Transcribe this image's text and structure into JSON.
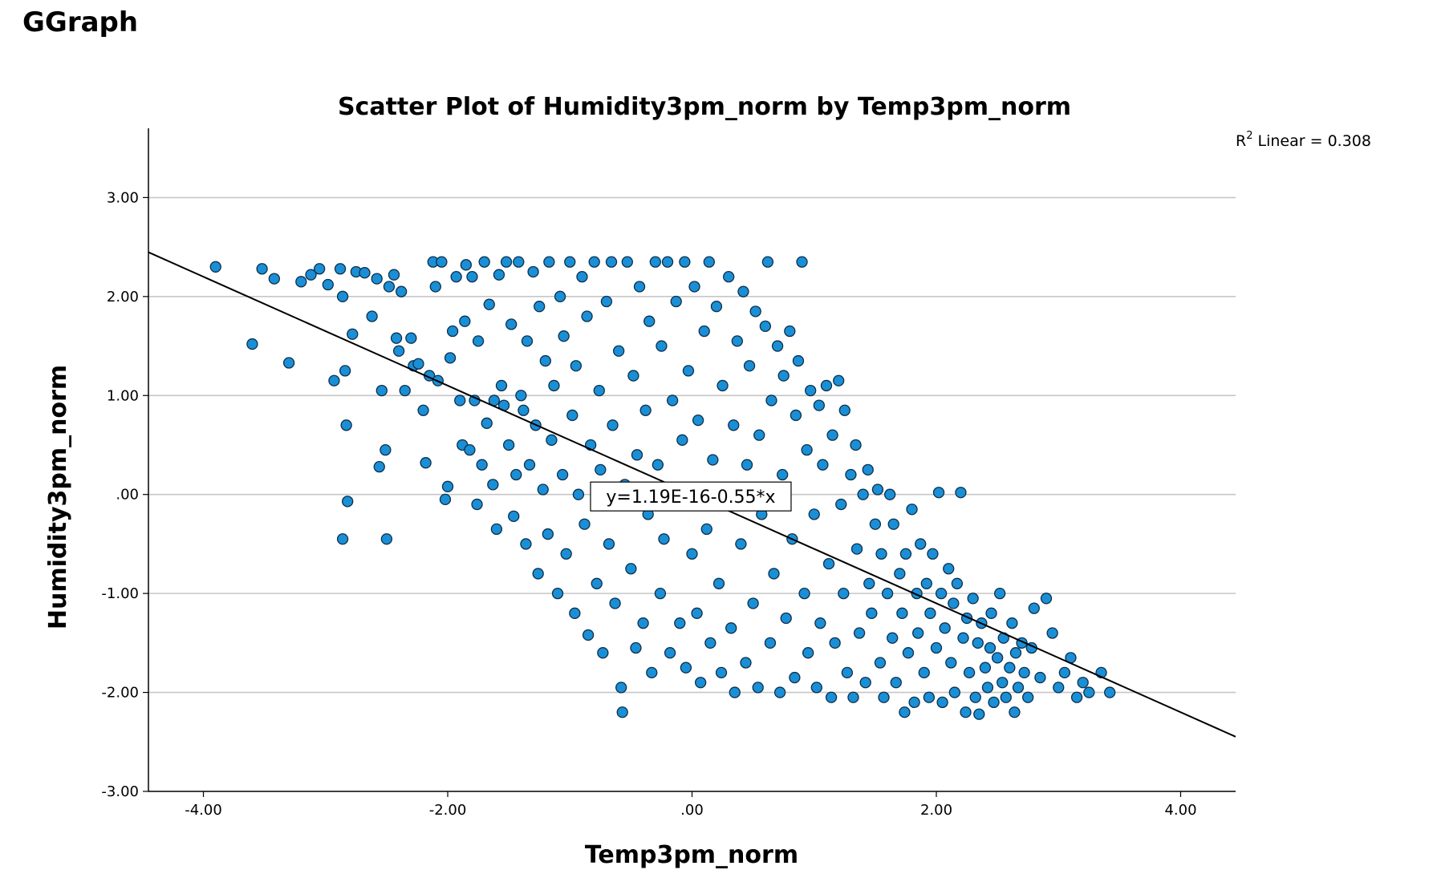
{
  "page": {
    "heading": "GGraph"
  },
  "chart_data": {
    "type": "scatter",
    "title": "Scatter Plot of Humidity3pm_norm by Temp3pm_norm",
    "xlabel": "Temp3pm_norm",
    "ylabel": "Humidity3pm_norm",
    "xlim": [
      -4.45,
      4.45
    ],
    "ylim": [
      -3.0,
      3.7
    ],
    "x_ticks": [
      -4.0,
      -2.0,
      0.0,
      2.0,
      4.0
    ],
    "x_tick_labels": [
      "-4.00",
      "-2.00",
      ".00",
      "2.00",
      "4.00"
    ],
    "y_ticks": [
      -3.0,
      -2.0,
      -1.0,
      0.0,
      1.0,
      2.0,
      3.0
    ],
    "y_tick_labels": [
      "-3.00",
      "-2.00",
      "-1.00",
      ".00",
      "1.00",
      "2.00",
      "3.00"
    ],
    "grid": "horizontal",
    "marker_color": "#1a8fd6",
    "marker_edge_color": "#0d2f4a",
    "fit_line": {
      "intercept": 1.19e-16,
      "slope": -0.55,
      "color": "#000000"
    },
    "fit_equation": "y=1.19E-16-0.55*x",
    "fit_equation_position": {
      "x": -0.01,
      "y": -0.02
    },
    "r2_label_base": "R",
    "r2_label_sup": "2",
    "r2_label_rest": " Linear = 0.308",
    "points": [
      [
        -3.9,
        2.3
      ],
      [
        -3.6,
        1.52
      ],
      [
        -3.52,
        2.28
      ],
      [
        -3.42,
        2.18
      ],
      [
        -3.3,
        1.33
      ],
      [
        -3.2,
        2.15
      ],
      [
        -3.12,
        2.22
      ],
      [
        -3.05,
        2.28
      ],
      [
        -2.98,
        2.12
      ],
      [
        -2.93,
        1.15
      ],
      [
        -2.88,
        2.28
      ],
      [
        -2.86,
        2.0
      ],
      [
        -2.84,
        1.25
      ],
      [
        -2.83,
        0.7
      ],
      [
        -2.82,
        -0.07
      ],
      [
        -2.86,
        -0.45
      ],
      [
        -2.78,
        1.62
      ],
      [
        -2.75,
        2.25
      ],
      [
        -2.68,
        2.24
      ],
      [
        -2.62,
        1.8
      ],
      [
        -2.58,
        2.18
      ],
      [
        -2.56,
        0.28
      ],
      [
        -2.54,
        1.05
      ],
      [
        -2.51,
        0.45
      ],
      [
        -2.5,
        -0.45
      ],
      [
        -2.48,
        2.1
      ],
      [
        -2.44,
        2.22
      ],
      [
        -2.42,
        1.58
      ],
      [
        -2.4,
        1.45
      ],
      [
        -2.38,
        2.05
      ],
      [
        -2.35,
        1.05
      ],
      [
        -2.3,
        1.58
      ],
      [
        -2.28,
        1.3
      ],
      [
        -2.24,
        1.32
      ],
      [
        -2.2,
        0.85
      ],
      [
        -2.18,
        0.32
      ],
      [
        -2.15,
        1.2
      ],
      [
        -2.12,
        2.35
      ],
      [
        -2.1,
        2.1
      ],
      [
        -2.08,
        1.15
      ],
      [
        -2.05,
        2.35
      ],
      [
        -2.02,
        -0.05
      ],
      [
        -2.0,
        0.08
      ],
      [
        -1.98,
        1.38
      ],
      [
        -1.96,
        1.65
      ],
      [
        -1.93,
        2.2
      ],
      [
        -1.9,
        0.95
      ],
      [
        -1.88,
        0.5
      ],
      [
        -1.86,
        1.75
      ],
      [
        -1.85,
        2.32
      ],
      [
        -1.82,
        0.45
      ],
      [
        -1.8,
        2.2
      ],
      [
        -1.78,
        0.95
      ],
      [
        -1.76,
        -0.1
      ],
      [
        -1.75,
        1.55
      ],
      [
        -1.72,
        0.3
      ],
      [
        -1.7,
        2.35
      ],
      [
        -1.68,
        0.72
      ],
      [
        -1.66,
        1.92
      ],
      [
        -1.63,
        0.1
      ],
      [
        -1.62,
        0.95
      ],
      [
        -1.6,
        -0.35
      ],
      [
        -1.58,
        2.22
      ],
      [
        -1.56,
        1.1
      ],
      [
        -1.54,
        0.9
      ],
      [
        -1.52,
        2.35
      ],
      [
        -1.5,
        0.5
      ],
      [
        -1.48,
        1.72
      ],
      [
        -1.46,
        -0.22
      ],
      [
        -1.44,
        0.2
      ],
      [
        -1.42,
        2.35
      ],
      [
        -1.4,
        1.0
      ],
      [
        -1.38,
        0.85
      ],
      [
        -1.36,
        -0.5
      ],
      [
        -1.35,
        1.55
      ],
      [
        -1.33,
        0.3
      ],
      [
        -1.3,
        2.25
      ],
      [
        -1.28,
        0.7
      ],
      [
        -1.26,
        -0.8
      ],
      [
        -1.25,
        1.9
      ],
      [
        -1.22,
        0.05
      ],
      [
        -1.2,
        1.35
      ],
      [
        -1.18,
        -0.4
      ],
      [
        -1.17,
        2.35
      ],
      [
        -1.15,
        0.55
      ],
      [
        -1.13,
        1.1
      ],
      [
        -1.1,
        -1.0
      ],
      [
        -1.08,
        2.0
      ],
      [
        -1.06,
        0.2
      ],
      [
        -1.05,
        1.6
      ],
      [
        -1.03,
        -0.6
      ],
      [
        -1.0,
        2.35
      ],
      [
        -0.98,
        0.8
      ],
      [
        -0.96,
        -1.2
      ],
      [
        -0.95,
        1.3
      ],
      [
        -0.93,
        0.0
      ],
      [
        -0.9,
        2.2
      ],
      [
        -0.88,
        -0.3
      ],
      [
        -0.86,
        1.8
      ],
      [
        -0.85,
        -1.42
      ],
      [
        -0.83,
        0.5
      ],
      [
        -0.8,
        2.35
      ],
      [
        -0.78,
        -0.9
      ],
      [
        -0.76,
        1.05
      ],
      [
        -0.75,
        0.25
      ],
      [
        -0.73,
        -1.6
      ],
      [
        -0.7,
        1.95
      ],
      [
        -0.68,
        -0.5
      ],
      [
        -0.66,
        2.35
      ],
      [
        -0.65,
        0.7
      ],
      [
        -0.63,
        -1.1
      ],
      [
        -0.6,
        1.45
      ],
      [
        -0.58,
        -1.95
      ],
      [
        -0.57,
        -2.2
      ],
      [
        -0.55,
        0.1
      ],
      [
        -0.53,
        2.35
      ],
      [
        -0.5,
        -0.75
      ],
      [
        -0.48,
        1.2
      ],
      [
        -0.46,
        -1.55
      ],
      [
        -0.45,
        0.4
      ],
      [
        -0.43,
        2.1
      ],
      [
        -0.4,
        -1.3
      ],
      [
        -0.38,
        0.85
      ],
      [
        -0.36,
        -0.2
      ],
      [
        -0.35,
        1.75
      ],
      [
        -0.33,
        -1.8
      ],
      [
        -0.3,
        2.35
      ],
      [
        -0.28,
        0.3
      ],
      [
        -0.26,
        -1.0
      ],
      [
        -0.25,
        1.5
      ],
      [
        -0.23,
        -0.45
      ],
      [
        -0.2,
        2.35
      ],
      [
        -0.18,
        -1.6
      ],
      [
        -0.16,
        0.95
      ],
      [
        -0.15,
        -0.1
      ],
      [
        -0.13,
        1.95
      ],
      [
        -0.1,
        -1.3
      ],
      [
        -0.08,
        0.55
      ],
      [
        -0.06,
        2.35
      ],
      [
        -0.05,
        -1.75
      ],
      [
        -0.03,
        1.25
      ],
      [
        0.0,
        -0.6
      ],
      [
        0.02,
        2.1
      ],
      [
        0.04,
        -1.2
      ],
      [
        0.05,
        0.75
      ],
      [
        0.07,
        -1.9
      ],
      [
        0.1,
        1.65
      ],
      [
        0.12,
        -0.35
      ],
      [
        0.14,
        2.35
      ],
      [
        0.15,
        -1.5
      ],
      [
        0.17,
        0.35
      ],
      [
        0.2,
        1.9
      ],
      [
        0.22,
        -0.9
      ],
      [
        0.24,
        -1.8
      ],
      [
        0.25,
        1.1
      ],
      [
        0.27,
        0.05
      ],
      [
        0.3,
        2.2
      ],
      [
        0.32,
        -1.35
      ],
      [
        0.34,
        0.7
      ],
      [
        0.35,
        -2.0
      ],
      [
        0.37,
        1.55
      ],
      [
        0.4,
        -0.5
      ],
      [
        0.42,
        2.05
      ],
      [
        0.44,
        -1.7
      ],
      [
        0.45,
        0.3
      ],
      [
        0.47,
        1.3
      ],
      [
        0.5,
        -1.1
      ],
      [
        0.52,
        1.85
      ],
      [
        0.54,
        -1.95
      ],
      [
        0.55,
        0.6
      ],
      [
        0.57,
        -0.2
      ],
      [
        0.6,
        1.7
      ],
      [
        0.62,
        2.35
      ],
      [
        0.64,
        -1.5
      ],
      [
        0.65,
        0.95
      ],
      [
        0.67,
        -0.8
      ],
      [
        0.7,
        1.5
      ],
      [
        0.72,
        -2.0
      ],
      [
        0.74,
        0.2
      ],
      [
        0.75,
        1.2
      ],
      [
        0.77,
        -1.25
      ],
      [
        0.8,
        1.65
      ],
      [
        0.82,
        -0.45
      ],
      [
        0.84,
        -1.85
      ],
      [
        0.85,
        0.8
      ],
      [
        0.87,
        1.35
      ],
      [
        0.9,
        2.35
      ],
      [
        0.92,
        -1.0
      ],
      [
        0.94,
        0.45
      ],
      [
        0.95,
        -1.6
      ],
      [
        0.97,
        1.05
      ],
      [
        1.0,
        -0.2
      ],
      [
        1.02,
        -1.95
      ],
      [
        1.04,
        0.9
      ],
      [
        1.05,
        -1.3
      ],
      [
        1.07,
        0.3
      ],
      [
        1.1,
        1.1
      ],
      [
        1.12,
        -0.7
      ],
      [
        1.14,
        -2.05
      ],
      [
        1.15,
        0.6
      ],
      [
        1.17,
        -1.5
      ],
      [
        1.2,
        1.15
      ],
      [
        1.22,
        -0.1
      ],
      [
        1.24,
        -1.0
      ],
      [
        1.25,
        0.85
      ],
      [
        1.27,
        -1.8
      ],
      [
        1.3,
        0.2
      ],
      [
        1.32,
        -2.05
      ],
      [
        1.34,
        0.5
      ],
      [
        1.35,
        -0.55
      ],
      [
        1.37,
        -1.4
      ],
      [
        1.4,
        0.0
      ],
      [
        1.42,
        -1.9
      ],
      [
        1.44,
        0.25
      ],
      [
        1.45,
        -0.9
      ],
      [
        1.47,
        -1.2
      ],
      [
        1.5,
        -0.3
      ],
      [
        1.52,
        0.05
      ],
      [
        1.54,
        -1.7
      ],
      [
        1.55,
        -0.6
      ],
      [
        1.57,
        -2.05
      ],
      [
        1.6,
        -1.0
      ],
      [
        1.62,
        0.0
      ],
      [
        1.64,
        -1.45
      ],
      [
        1.65,
        -0.3
      ],
      [
        1.67,
        -1.9
      ],
      [
        1.7,
        -0.8
      ],
      [
        1.72,
        -1.2
      ],
      [
        1.74,
        -2.2
      ],
      [
        1.75,
        -0.6
      ],
      [
        1.77,
        -1.6
      ],
      [
        1.8,
        -0.15
      ],
      [
        1.82,
        -2.1
      ],
      [
        1.84,
        -1.0
      ],
      [
        1.85,
        -1.4
      ],
      [
        1.87,
        -0.5
      ],
      [
        1.9,
        -1.8
      ],
      [
        1.92,
        -0.9
      ],
      [
        1.94,
        -2.05
      ],
      [
        1.95,
        -1.2
      ],
      [
        1.97,
        -0.6
      ],
      [
        2.0,
        -1.55
      ],
      [
        2.02,
        0.02
      ],
      [
        2.04,
        -1.0
      ],
      [
        2.05,
        -2.1
      ],
      [
        2.07,
        -1.35
      ],
      [
        2.1,
        -0.75
      ],
      [
        2.12,
        -1.7
      ],
      [
        2.14,
        -1.1
      ],
      [
        2.15,
        -2.0
      ],
      [
        2.17,
        -0.9
      ],
      [
        2.2,
        0.02
      ],
      [
        2.22,
        -1.45
      ],
      [
        2.24,
        -2.2
      ],
      [
        2.25,
        -1.25
      ],
      [
        2.27,
        -1.8
      ],
      [
        2.3,
        -1.05
      ],
      [
        2.32,
        -2.05
      ],
      [
        2.34,
        -1.5
      ],
      [
        2.35,
        -2.22
      ],
      [
        2.37,
        -1.3
      ],
      [
        2.4,
        -1.75
      ],
      [
        2.42,
        -1.95
      ],
      [
        2.44,
        -1.55
      ],
      [
        2.45,
        -1.2
      ],
      [
        2.47,
        -2.1
      ],
      [
        2.5,
        -1.65
      ],
      [
        2.52,
        -1.0
      ],
      [
        2.54,
        -1.9
      ],
      [
        2.55,
        -1.45
      ],
      [
        2.57,
        -2.05
      ],
      [
        2.6,
        -1.75
      ],
      [
        2.62,
        -1.3
      ],
      [
        2.64,
        -2.2
      ],
      [
        2.65,
        -1.6
      ],
      [
        2.67,
        -1.95
      ],
      [
        2.7,
        -1.5
      ],
      [
        2.72,
        -1.8
      ],
      [
        2.75,
        -2.05
      ],
      [
        2.78,
        -1.55
      ],
      [
        2.8,
        -1.15
      ],
      [
        2.85,
        -1.85
      ],
      [
        2.9,
        -1.05
      ],
      [
        2.95,
        -1.4
      ],
      [
        3.0,
        -1.95
      ],
      [
        3.05,
        -1.8
      ],
      [
        3.1,
        -1.65
      ],
      [
        3.15,
        -2.05
      ],
      [
        3.2,
        -1.9
      ],
      [
        3.25,
        -2.0
      ],
      [
        3.35,
        -1.8
      ],
      [
        3.42,
        -2.0
      ]
    ]
  }
}
